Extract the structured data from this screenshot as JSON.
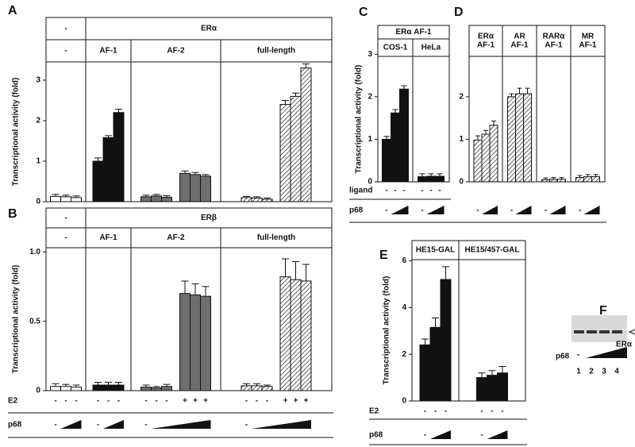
{
  "chart_data": [
    {
      "type": "bar",
      "panel": "A",
      "ylabel": "Transcriptional activity (fold)",
      "ylim": [
        0,
        3.45
      ],
      "yticks": [
        0,
        1,
        2,
        3
      ],
      "columns": [
        {
          "label": "-",
          "groups": [
            {
              "label": "-",
              "fill": "white",
              "values": [
                0.13,
                0.12,
                0.1
              ],
              "errors": [
                0.05,
                0.04,
                0.04
              ]
            }
          ]
        },
        {
          "label": "ERα",
          "groups": [
            {
              "label": "AF-1",
              "fill": "black",
              "values": [
                1.0,
                1.58,
                2.2
              ],
              "errors": [
                0.08,
                0.05,
                0.08
              ]
            },
            {
              "label": "AF-2",
              "fill": "gray",
              "values": [
                0.12,
                0.14,
                0.11,
                0.7,
                0.67,
                0.63
              ],
              "errors": [
                0.04,
                0.04,
                0.04,
                0.06,
                0.05,
                0.04
              ]
            },
            {
              "label": "full-length",
              "fill": "hatched",
              "values": [
                0.1,
                0.09,
                0.06,
                2.4,
                2.6,
                3.3
              ],
              "errors": [
                0.03,
                0.03,
                0.03,
                0.1,
                0.08,
                0.1
              ]
            }
          ]
        }
      ]
    },
    {
      "type": "bar",
      "panel": "B",
      "ylabel": "Transcriptional activity (fold)",
      "ylim": [
        0,
        1.03
      ],
      "yticks": [
        0,
        0.5,
        {
          "value": 1,
          "label": "1.0"
        }
      ],
      "columns": [
        {
          "label": "-",
          "groups": [
            {
              "label": "-",
              "fill": "white",
              "values": [
                0.03,
                0.03,
                0.025
              ],
              "errors": [
                0.02,
                0.015,
                0.015
              ]
            }
          ]
        },
        {
          "label": "ERβ",
          "groups": [
            {
              "label": "AF-1",
              "fill": "black",
              "values": [
                0.04,
                0.04,
                0.04
              ],
              "errors": [
                0.02,
                0.02,
                0.02
              ]
            },
            {
              "label": "AF-2",
              "fill": "gray",
              "values": [
                0.025,
                0.02,
                0.03,
                0.7,
                0.69,
                0.68
              ],
              "errors": [
                0.015,
                0.01,
                0.015,
                0.09,
                0.08,
                0.07
              ]
            },
            {
              "label": "full-length",
              "fill": "hatched",
              "values": [
                0.035,
                0.035,
                0.03,
                0.82,
                0.8,
                0.79
              ],
              "errors": [
                0.015,
                0.015,
                0.01,
                0.13,
                0.13,
                0.12
              ]
            }
          ]
        }
      ],
      "conditions": [
        {
          "label": "E2",
          "groups": [
            [
              "-",
              "-",
              "-"
            ],
            [
              "-",
              "-",
              "-"
            ],
            [
              "-",
              "-",
              "-",
              "+",
              "+",
              "+"
            ],
            [
              "-",
              "-",
              "-",
              "+",
              "+",
              "+"
            ]
          ]
        },
        {
          "label": "p68",
          "groups": [
            [
              "-"
            ],
            [
              "-"
            ],
            [
              "-"
            ],
            [
              "-"
            ]
          ]
        }
      ]
    },
    {
      "type": "bar",
      "panel": "C",
      "ylabel": "Transcriptional activity (fold)",
      "ylim": [
        0,
        2.95
      ],
      "yticks": [
        0,
        1,
        2,
        3
      ],
      "columns": [
        {
          "label": "ERα AF-1",
          "groups": [
            {
              "label": "COS-1",
              "fill": "black",
              "values": [
                1.0,
                1.62,
                2.18
              ],
              "errors": [
                0.07,
                0.08,
                0.08
              ]
            },
            {
              "label": "HeLa",
              "fill": "black",
              "values": [
                0.12,
                0.13,
                0.13
              ],
              "errors": [
                0.07,
                0.06,
                0.06
              ]
            }
          ]
        }
      ],
      "conditions": [
        {
          "label": "ligand",
          "groups": [
            [
              "-",
              "-",
              "-"
            ],
            [
              "-",
              "-",
              "-"
            ]
          ]
        },
        {
          "label": "p68",
          "groups": [
            [
              "-"
            ],
            [
              "-"
            ]
          ]
        }
      ]
    },
    {
      "type": "bar",
      "panel": "D",
      "ylim": [
        0,
        2.95
      ],
      "yticks": [
        0,
        1,
        2
      ],
      "groups": [
        {
          "label": [
            "ERα",
            "AF-1"
          ],
          "fill": "hatched",
          "values": [
            0.98,
            1.12,
            1.33
          ],
          "errors": [
            0.1,
            0.09,
            0.1
          ]
        },
        {
          "label": [
            "AR",
            "AF-1"
          ],
          "fill": "hatched",
          "values": [
            2.0,
            2.07,
            2.07
          ],
          "errors": [
            0.07,
            0.13,
            0.13
          ]
        },
        {
          "label": [
            "RARα",
            "AF-1"
          ],
          "fill": "hatched",
          "values": [
            0.05,
            0.06,
            0.06
          ],
          "errors": [
            0.04,
            0.04,
            0.04
          ]
        },
        {
          "label": [
            "MR",
            "AF-1"
          ],
          "fill": "hatched",
          "values": [
            0.1,
            0.12,
            0.12
          ],
          "errors": [
            0.05,
            0.05,
            0.05
          ]
        }
      ],
      "conditions": [
        {
          "label": null,
          "groups": [
            [
              "-"
            ],
            [
              "-"
            ],
            [
              "-"
            ],
            [
              "-"
            ]
          ]
        }
      ]
    },
    {
      "type": "bar",
      "panel": "E",
      "ylabel": "Transcriptional activity (fold)",
      "ylim": [
        0,
        6.05
      ],
      "yticks": [
        0,
        2,
        4,
        6
      ],
      "groups": [
        {
          "label": [
            "HE15-GAL"
          ],
          "fill": "black",
          "values": [
            2.4,
            3.15,
            5.2
          ],
          "errors": [
            0.25,
            0.4,
            0.55
          ]
        },
        {
          "label": [
            "HE15/457-GAL"
          ],
          "fill": "black",
          "values": [
            1.0,
            1.1,
            1.2
          ],
          "errors": [
            0.2,
            0.2,
            0.28
          ]
        }
      ],
      "conditions": [
        {
          "label": "E2",
          "groups": [
            [
              "-",
              "-",
              "-"
            ],
            [
              "-",
              "-",
              "-"
            ]
          ]
        },
        {
          "label": "p68",
          "groups": [
            [
              "-"
            ],
            [
              "-"
            ]
          ]
        }
      ]
    }
  ],
  "gel": {
    "panel": "F",
    "band": "ERα",
    "treatment": "p68",
    "zero": "-",
    "lanes": [
      "1",
      "2",
      "3",
      "4"
    ]
  }
}
